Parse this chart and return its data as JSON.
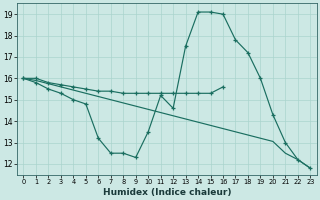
{
  "xlabel": "Humidex (Indice chaleur)",
  "x_values": [
    0,
    1,
    2,
    3,
    4,
    5,
    6,
    7,
    8,
    9,
    10,
    11,
    12,
    13,
    14,
    15,
    16,
    17,
    18,
    19,
    20,
    21,
    22,
    23
  ],
  "line_flat": [
    16,
    16,
    15.8,
    15.7,
    15.6,
    15.5,
    15.4,
    15.4,
    15.3,
    15.3,
    15.3,
    15.3,
    15.3,
    15.3,
    15.3,
    15.3,
    15.6,
    null,
    null,
    null,
    null,
    null,
    null,
    null
  ],
  "line_peak": [
    16,
    15.8,
    15.5,
    15.3,
    15.0,
    14.8,
    13.2,
    12.5,
    12.5,
    12.3,
    13.5,
    15.2,
    14.6,
    17.5,
    19.1,
    19.1,
    19.0,
    17.8,
    17.2,
    16.0,
    14.3,
    13.0,
    12.2,
    11.8
  ],
  "line_diag": [
    16,
    15.9,
    15.75,
    15.6,
    15.45,
    15.3,
    15.15,
    15.0,
    14.85,
    14.7,
    14.55,
    14.4,
    14.25,
    14.1,
    13.95,
    13.8,
    13.65,
    13.5,
    13.35,
    13.2,
    13.05,
    12.5,
    12.2,
    11.8
  ],
  "background_color": "#cce8e4",
  "grid_color": "#aad4ce",
  "line_color": "#1a6e60",
  "ylim": [
    11.5,
    19.5
  ],
  "xlim": [
    -0.5,
    23.5
  ],
  "yticks": [
    12,
    13,
    14,
    15,
    16,
    17,
    18,
    19
  ],
  "xticks": [
    0,
    1,
    2,
    3,
    4,
    5,
    6,
    7,
    8,
    9,
    10,
    11,
    12,
    13,
    14,
    15,
    16,
    17,
    18,
    19,
    20,
    21,
    22,
    23
  ]
}
